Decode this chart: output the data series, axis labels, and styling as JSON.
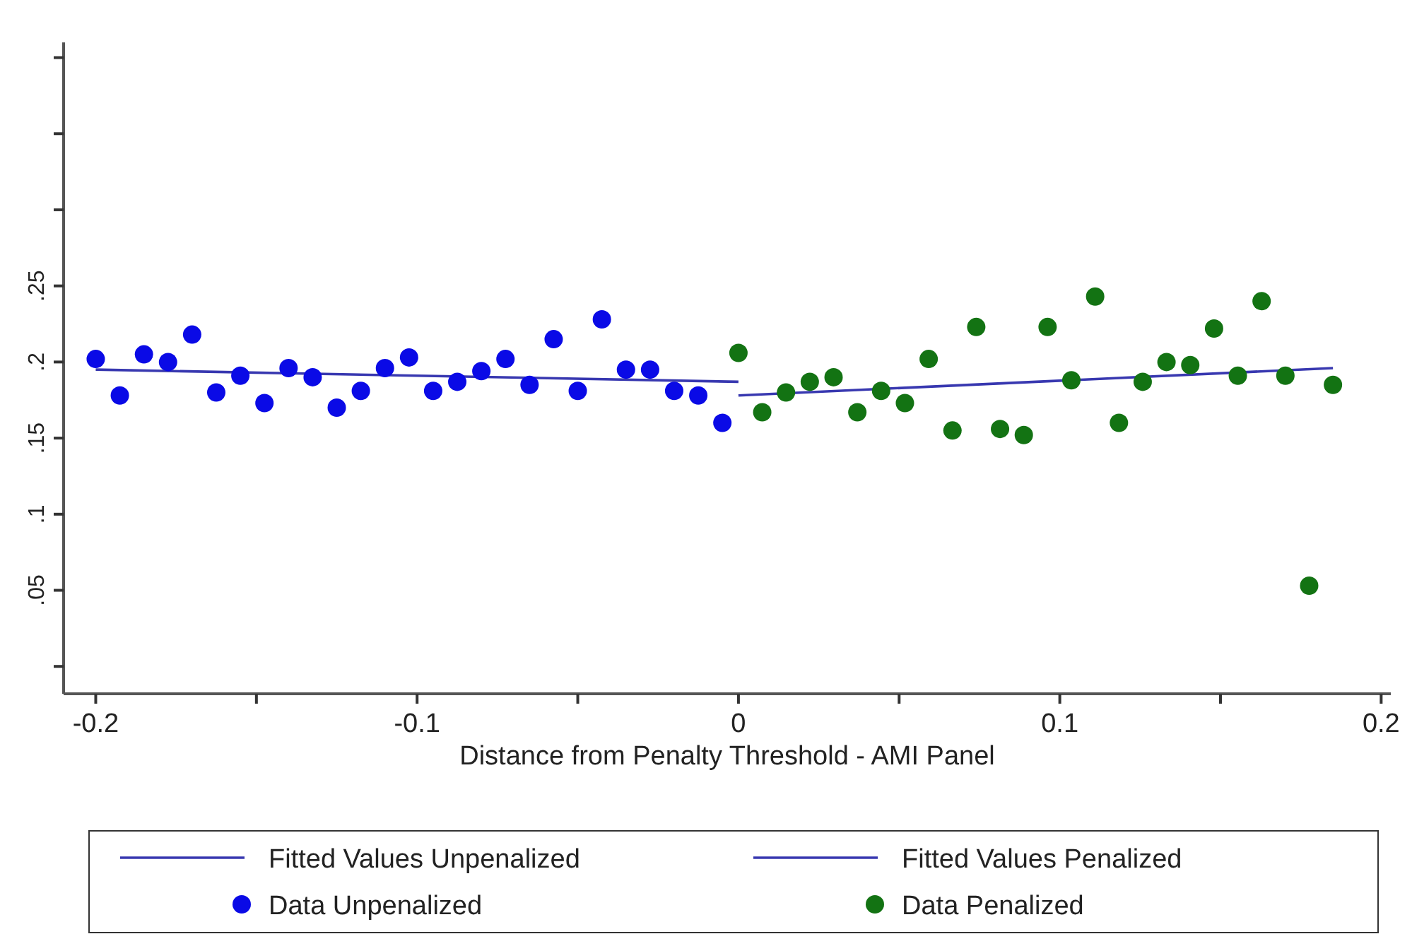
{
  "chart_data": {
    "type": "scatter",
    "xlabel": "Distance from Penalty Threshold - AMI Panel",
    "xlim": [
      -0.21,
      0.203
    ],
    "xticks": [
      -0.2,
      {
        "value": -0.15,
        "label": null
      },
      -0.1,
      {
        "value": -0.05,
        "label": null
      },
      0,
      {
        "value": 0.05,
        "label": null
      },
      0.1,
      {
        "value": 0.15,
        "label": null
      },
      0.2
    ],
    "ylim": [
      -0.018,
      0.41
    ],
    "yticks": [
      {
        "value": 0,
        "label": null
      },
      {
        "value": 0.05,
        "label": ".05"
      },
      {
        "value": 0.1,
        "label": ".1"
      },
      {
        "value": 0.15,
        "label": ".15"
      },
      {
        "value": 0.2,
        "label": ".2"
      },
      {
        "value": 0.25,
        "label": ".25"
      },
      {
        "value": 0.3,
        "label": null
      },
      {
        "value": 0.35,
        "label": null
      },
      {
        "value": 0.4,
        "label": null
      }
    ],
    "legend": "bottom",
    "marker": "circle",
    "line_style": "solid",
    "series": [
      {
        "name": "Fitted Values Unpenalized",
        "type": "line",
        "marker": "none",
        "color": "#3838b0",
        "x": [
          -0.2,
          0
        ],
        "values": [
          0.195,
          0.187
        ]
      },
      {
        "name": "Fitted Values Penalized",
        "type": "line",
        "marker": "none",
        "color": "#3838b0",
        "x": [
          0,
          0.185
        ],
        "values": [
          0.178,
          0.196
        ]
      },
      {
        "name": "Data Unpenalized",
        "type": "scatter",
        "color": "#0a0ae6",
        "x": [
          -0.2,
          -0.1925,
          -0.185,
          -0.1775,
          -0.17,
          -0.1625,
          -0.155,
          -0.1475,
          -0.14,
          -0.1325,
          -0.125,
          -0.1175,
          -0.11,
          -0.1025,
          -0.095,
          -0.0875,
          -0.08,
          -0.0725,
          -0.065,
          -0.0575,
          -0.05,
          -0.0425,
          -0.035,
          -0.0275,
          -0.02,
          -0.0125,
          -0.005
        ],
        "values": [
          0.202,
          0.178,
          0.205,
          0.2,
          0.218,
          0.18,
          0.191,
          0.173,
          0.196,
          0.19,
          0.17,
          0.181,
          0.196,
          0.203,
          0.181,
          0.187,
          0.194,
          0.202,
          0.185,
          0.215,
          0.181,
          0.228,
          0.195,
          0.195,
          0.181,
          0.178,
          0.16
        ]
      },
      {
        "name": "Data Penalized",
        "type": "scatter",
        "color": "#137313",
        "x": [
          0,
          0.0074,
          0.0148,
          0.0222,
          0.0296,
          0.037,
          0.0444,
          0.0518,
          0.0592,
          0.0666,
          0.074,
          0.0814,
          0.0888,
          0.0962,
          0.1036,
          0.111,
          0.1184,
          0.1258,
          0.1332,
          0.1406,
          0.148,
          0.1554,
          0.1628,
          0.1702,
          0.1776,
          0.185
        ],
        "values": [
          0.206,
          0.167,
          0.18,
          0.187,
          0.19,
          0.167,
          0.181,
          0.173,
          0.202,
          0.155,
          0.223,
          0.156,
          0.152,
          0.223,
          0.188,
          0.243,
          0.16,
          0.187,
          0.2,
          0.198,
          0.222,
          0.191,
          0.24,
          0.191,
          0.053,
          0.185
        ]
      }
    ]
  }
}
